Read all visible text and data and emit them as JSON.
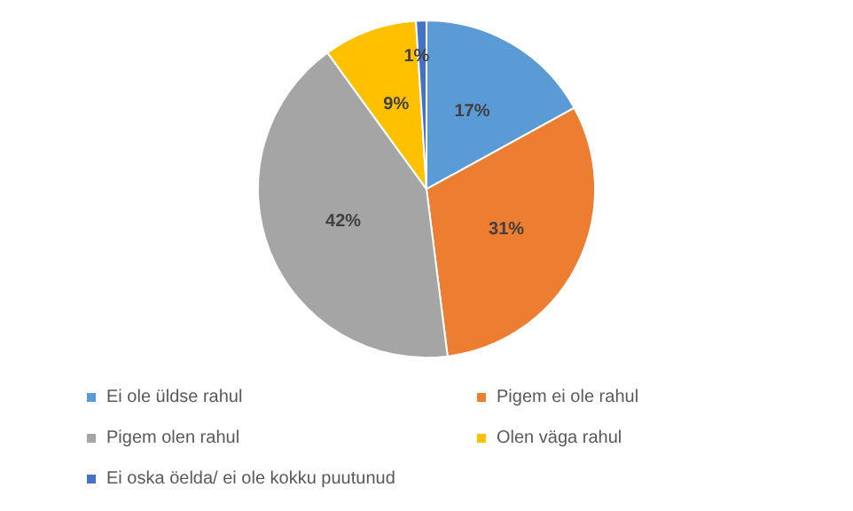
{
  "chart_data": {
    "type": "pie",
    "categories": [
      "Ei ole üldse rahul",
      "Pigem ei ole rahul",
      "Pigem olen rahul",
      "Olen väga rahul",
      "Ei oska öelda/ ei ole kokku puutunud"
    ],
    "values": [
      17,
      31,
      42,
      9,
      1
    ],
    "colors": [
      "#5b9bd5",
      "#ed7d31",
      "#a5a5a5",
      "#ffc000",
      "#4472c4"
    ],
    "value_labels": [
      "17%",
      "31%",
      "42%",
      "9%",
      "1%"
    ],
    "legend": "bottom"
  }
}
